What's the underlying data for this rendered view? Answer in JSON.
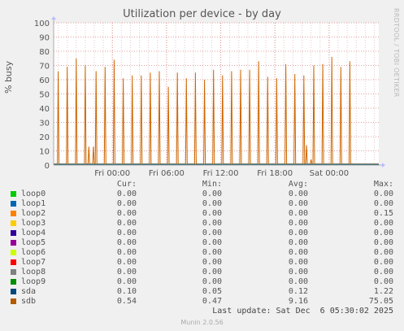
{
  "chart_data": {
    "type": "line",
    "title": "Utilization per device - by day",
    "ylabel": "% busy",
    "watermark": "RRDTOOL / TOBI OETIKER",
    "ylim": [
      0,
      100
    ],
    "yticks": [
      "0",
      "10",
      "20",
      "30",
      "40",
      "50",
      "60",
      "70",
      "80",
      "90",
      "100"
    ],
    "xlim_hours": [
      -6.5,
      29.5
    ],
    "xticks": [
      {
        "label": "Fri 00:00",
        "hour": 0
      },
      {
        "label": "Fri 06:00",
        "hour": 6
      },
      {
        "label": "Fri 12:00",
        "hour": 12
      },
      {
        "label": "Fri 18:00",
        "hour": 18
      },
      {
        "label": "Sat 00:00",
        "hour": 24
      }
    ],
    "grid": true,
    "series": [
      {
        "name": "sdb",
        "color": "#cc6600",
        "spikes": [
          {
            "hour": -6.0,
            "value": 66
          },
          {
            "hour": -5.0,
            "value": 69
          },
          {
            "hour": -4.0,
            "value": 75
          },
          {
            "hour": -3.0,
            "value": 70
          },
          {
            "hour": -2.6,
            "value": 13
          },
          {
            "hour": -2.1,
            "value": 13
          },
          {
            "hour": -1.8,
            "value": 66
          },
          {
            "hour": -0.8,
            "value": 69
          },
          {
            "hour": 0.2,
            "value": 74
          },
          {
            "hour": 1.2,
            "value": 61
          },
          {
            "hour": 2.2,
            "value": 63
          },
          {
            "hour": 3.2,
            "value": 63
          },
          {
            "hour": 4.2,
            "value": 65
          },
          {
            "hour": 5.2,
            "value": 66
          },
          {
            "hour": 6.2,
            "value": 55
          },
          {
            "hour": 7.2,
            "value": 65
          },
          {
            "hour": 8.2,
            "value": 61
          },
          {
            "hour": 9.2,
            "value": 65
          },
          {
            "hour": 10.2,
            "value": 60
          },
          {
            "hour": 11.2,
            "value": 67
          },
          {
            "hour": 12.2,
            "value": 63
          },
          {
            "hour": 13.2,
            "value": 66
          },
          {
            "hour": 14.2,
            "value": 67
          },
          {
            "hour": 15.2,
            "value": 67
          },
          {
            "hour": 16.2,
            "value": 73
          },
          {
            "hour": 17.2,
            "value": 62
          },
          {
            "hour": 18.2,
            "value": 61
          },
          {
            "hour": 19.2,
            "value": 71
          },
          {
            "hour": 20.2,
            "value": 64
          },
          {
            "hour": 21.2,
            "value": 63
          },
          {
            "hour": 21.5,
            "value": 14
          },
          {
            "hour": 22.0,
            "value": 4
          },
          {
            "hour": 22.3,
            "value": 70
          },
          {
            "hour": 23.3,
            "value": 71
          },
          {
            "hour": 24.3,
            "value": 76
          },
          {
            "hour": 25.3,
            "value": 69
          },
          {
            "hour": 26.3,
            "value": 73
          }
        ]
      },
      {
        "name": "sda",
        "color": "#005a78",
        "spikes": []
      }
    ]
  },
  "legend": {
    "headers": {
      "cur": "Cur:",
      "min": "Min:",
      "avg": "Avg:",
      "max": "Max:"
    },
    "rows": [
      {
        "name": "loop0",
        "color": "#00cc00",
        "cur": "0.00",
        "min": "0.00",
        "avg": "0.00",
        "max": "0.00"
      },
      {
        "name": "loop1",
        "color": "#0066b3",
        "cur": "0.00",
        "min": "0.00",
        "avg": "0.00",
        "max": "0.00"
      },
      {
        "name": "loop2",
        "color": "#ff8000",
        "cur": "0.00",
        "min": "0.00",
        "avg": "0.00",
        "max": "0.15"
      },
      {
        "name": "loop3",
        "color": "#ffcc00",
        "cur": "0.00",
        "min": "0.00",
        "avg": "0.00",
        "max": "0.00"
      },
      {
        "name": "loop4",
        "color": "#330099",
        "cur": "0.00",
        "min": "0.00",
        "avg": "0.00",
        "max": "0.00"
      },
      {
        "name": "loop5",
        "color": "#990099",
        "cur": "0.00",
        "min": "0.00",
        "avg": "0.00",
        "max": "0.00"
      },
      {
        "name": "loop6",
        "color": "#ccff00",
        "cur": "0.00",
        "min": "0.00",
        "avg": "0.00",
        "max": "0.00"
      },
      {
        "name": "loop7",
        "color": "#ff0000",
        "cur": "0.00",
        "min": "0.00",
        "avg": "0.00",
        "max": "0.00"
      },
      {
        "name": "loop8",
        "color": "#808080",
        "cur": "0.00",
        "min": "0.00",
        "avg": "0.00",
        "max": "0.00"
      },
      {
        "name": "loop9",
        "color": "#008f00",
        "cur": "0.00",
        "min": "0.00",
        "avg": "0.00",
        "max": "0.00"
      },
      {
        "name": "sda",
        "color": "#00487d",
        "cur": "0.10",
        "min": "0.05",
        "avg": "0.12",
        "max": "1.22"
      },
      {
        "name": "sdb",
        "color": "#b35a00",
        "cur": "0.54",
        "min": "0.47",
        "avg": "9.16",
        "max": "75.05"
      }
    ]
  },
  "last_update": "Last update: Sat Dec  6 05:30:02 2025",
  "footer": "Munin 2.0.56"
}
